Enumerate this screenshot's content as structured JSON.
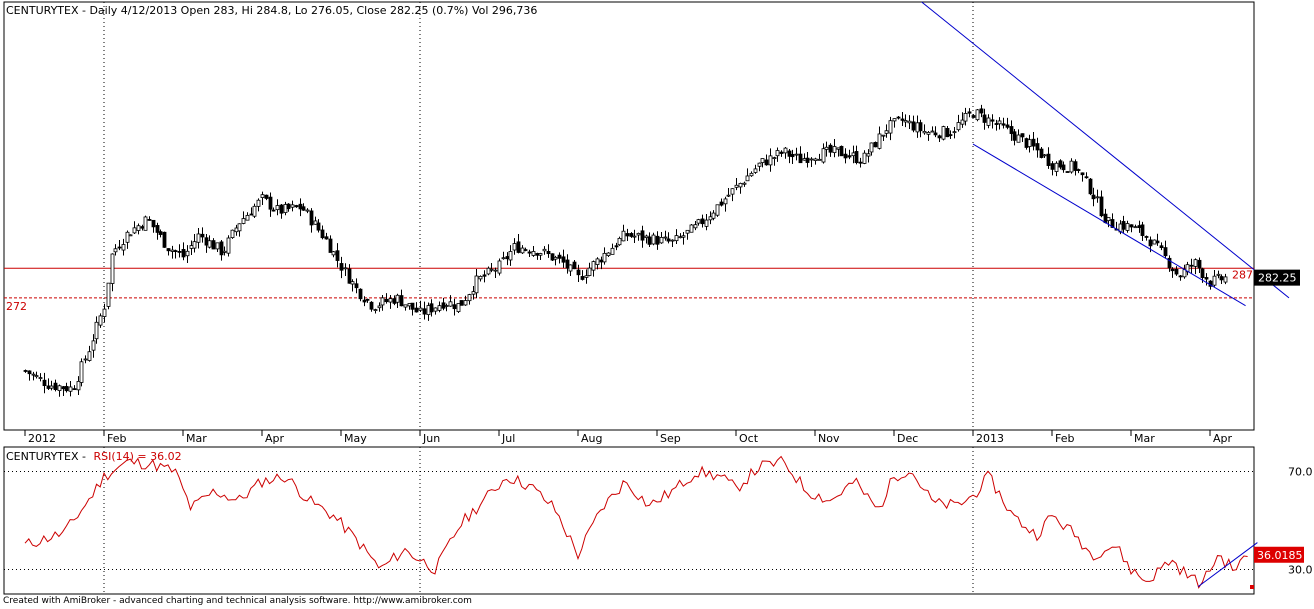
{
  "chart_data": [
    {
      "type": "candlestick",
      "header": {
        "ticker": "CENTURYTEX",
        "period": "Daily",
        "date": "4/12/2013",
        "open_label": "Open",
        "open": "283",
        "high_label": "Hi",
        "high": "284.8",
        "low_label": "Lo",
        "low": "276.05",
        "close_label": "Close",
        "close": "282.25",
        "change": "(0.7%)",
        "vol_label": "Vol",
        "volume": "296,736",
        "text": "CENTURYTEX - Daily 4/12/2013 Open 283, Hi 284.8, Lo 276.05, Close 282.25 (0.7%) Vol 296,736"
      },
      "ylim": [
        205,
        422
      ],
      "x_tick_labels": [
        {
          "label": "2012",
          "month": 0
        },
        {
          "label": "Feb",
          "month": 1
        },
        {
          "label": "Mar",
          "month": 2
        },
        {
          "label": "Apr",
          "month": 3
        },
        {
          "label": "May",
          "month": 4
        },
        {
          "label": "Jun",
          "month": 5
        },
        {
          "label": "Jul",
          "month": 6
        },
        {
          "label": "Aug",
          "month": 7
        },
        {
          "label": "Sep",
          "month": 8
        },
        {
          "label": "Oct",
          "month": 9
        },
        {
          "label": "Nov",
          "month": 10
        },
        {
          "label": "Dec",
          "month": 11
        },
        {
          "label": "2013",
          "month": 12
        },
        {
          "label": "Feb",
          "month": 13
        },
        {
          "label": "Mar",
          "month": 14
        },
        {
          "label": "Apr",
          "month": 15
        }
      ],
      "vertical_dotted_markers": [
        "Feb",
        "Jun",
        "2013"
      ],
      "price_path": [
        {
          "month": 0.0,
          "close": 235
        },
        {
          "month": 0.3,
          "close": 228
        },
        {
          "month": 0.6,
          "close": 226
        },
        {
          "month": 0.8,
          "close": 245
        },
        {
          "month": 1.0,
          "close": 268
        },
        {
          "month": 1.1,
          "close": 295
        },
        {
          "month": 1.3,
          "close": 305
        },
        {
          "month": 1.55,
          "close": 312
        },
        {
          "month": 1.8,
          "close": 298
        },
        {
          "month": 2.0,
          "close": 293
        },
        {
          "month": 2.2,
          "close": 304
        },
        {
          "month": 2.5,
          "close": 295
        },
        {
          "month": 2.7,
          "close": 310
        },
        {
          "month": 3.0,
          "close": 322
        },
        {
          "month": 3.2,
          "close": 316
        },
        {
          "month": 3.5,
          "close": 318
        },
        {
          "month": 3.8,
          "close": 302
        },
        {
          "month": 4.0,
          "close": 288
        },
        {
          "month": 4.2,
          "close": 276
        },
        {
          "month": 4.4,
          "close": 268
        },
        {
          "month": 4.7,
          "close": 272
        },
        {
          "month": 5.0,
          "close": 264
        },
        {
          "month": 5.3,
          "close": 270
        },
        {
          "month": 5.5,
          "close": 268
        },
        {
          "month": 5.7,
          "close": 280
        },
        {
          "month": 6.0,
          "close": 288
        },
        {
          "month": 6.2,
          "close": 298
        },
        {
          "month": 6.5,
          "close": 296
        },
        {
          "month": 6.8,
          "close": 290
        },
        {
          "month": 7.0,
          "close": 282
        },
        {
          "month": 7.3,
          "close": 293
        },
        {
          "month": 7.6,
          "close": 304
        },
        {
          "month": 7.9,
          "close": 302
        },
        {
          "month": 8.2,
          "close": 300
        },
        {
          "month": 8.5,
          "close": 308
        },
        {
          "month": 8.8,
          "close": 320
        },
        {
          "month": 9.0,
          "close": 328
        },
        {
          "month": 9.3,
          "close": 340
        },
        {
          "month": 9.6,
          "close": 346
        },
        {
          "month": 9.8,
          "close": 342
        },
        {
          "month": 10.0,
          "close": 345
        },
        {
          "month": 10.3,
          "close": 346
        },
        {
          "month": 10.6,
          "close": 342
        },
        {
          "month": 10.9,
          "close": 358
        },
        {
          "month": 11.1,
          "close": 362
        },
        {
          "month": 11.4,
          "close": 356
        },
        {
          "month": 11.7,
          "close": 356
        },
        {
          "month": 12.0,
          "close": 366
        },
        {
          "month": 12.2,
          "close": 362
        },
        {
          "month": 12.5,
          "close": 355
        },
        {
          "month": 12.8,
          "close": 347
        },
        {
          "month": 13.0,
          "close": 340
        },
        {
          "month": 13.3,
          "close": 338
        },
        {
          "month": 13.5,
          "close": 326
        },
        {
          "month": 13.7,
          "close": 310
        },
        {
          "month": 14.0,
          "close": 308
        },
        {
          "month": 14.2,
          "close": 303
        },
        {
          "month": 14.4,
          "close": 294
        },
        {
          "month": 14.6,
          "close": 283
        },
        {
          "month": 14.8,
          "close": 290
        },
        {
          "month": 15.0,
          "close": 280
        },
        {
          "month": 15.2,
          "close": 282.25
        }
      ],
      "horizontal_lines": [
        {
          "value": 287,
          "label": "287",
          "style": "solid",
          "color": "#cc0000"
        },
        {
          "value": 272,
          "label": "272",
          "style": "dashed",
          "color": "#cc0000"
        }
      ],
      "trend_channel": {
        "color": "#0000cc",
        "upper": [
          {
            "month": 11.35,
            "value": 422
          },
          {
            "month": 16.0,
            "value": 272
          }
        ],
        "lower": [
          {
            "month": 12.0,
            "value": 350
          },
          {
            "month": 15.45,
            "value": 268
          }
        ]
      },
      "last_value_badge": {
        "label": "282.25",
        "value": 282.25,
        "background": "#000000",
        "text_color": "#ffffff"
      },
      "colors": {
        "candle": "#000000",
        "frame": "#000000"
      }
    },
    {
      "type": "line",
      "header": {
        "ticker": "CENTURYTEX",
        "indicator": "RSI(14)",
        "value": "36.02",
        "text_prefix": "CENTURYTEX -",
        "text_indicator": "RSI(14) = 36.02"
      },
      "ylim": [
        20,
        80
      ],
      "levels": [
        {
          "value": 70,
          "label": "70.0"
        },
        {
          "value": 30,
          "label": "30.0"
        }
      ],
      "rsi_path": [
        {
          "month": 0.0,
          "value": 40
        },
        {
          "month": 0.5,
          "value": 45
        },
        {
          "month": 0.8,
          "value": 58
        },
        {
          "month": 1.0,
          "value": 68
        },
        {
          "month": 1.3,
          "value": 74
        },
        {
          "month": 1.6,
          "value": 73
        },
        {
          "month": 1.9,
          "value": 70
        },
        {
          "month": 2.1,
          "value": 55
        },
        {
          "month": 2.4,
          "value": 62
        },
        {
          "month": 2.7,
          "value": 58
        },
        {
          "month": 3.0,
          "value": 66
        },
        {
          "month": 3.3,
          "value": 68
        },
        {
          "month": 3.6,
          "value": 58
        },
        {
          "month": 3.9,
          "value": 52
        },
        {
          "month": 4.2,
          "value": 42
        },
        {
          "month": 4.5,
          "value": 30
        },
        {
          "month": 4.8,
          "value": 38
        },
        {
          "month": 5.0,
          "value": 34
        },
        {
          "month": 5.2,
          "value": 30
        },
        {
          "month": 5.5,
          "value": 48
        },
        {
          "month": 5.8,
          "value": 58
        },
        {
          "month": 6.1,
          "value": 68
        },
        {
          "month": 6.4,
          "value": 64
        },
        {
          "month": 6.7,
          "value": 55
        },
        {
          "month": 7.0,
          "value": 36
        },
        {
          "month": 7.3,
          "value": 55
        },
        {
          "month": 7.6,
          "value": 66
        },
        {
          "month": 7.9,
          "value": 56
        },
        {
          "month": 8.2,
          "value": 62
        },
        {
          "month": 8.5,
          "value": 70
        },
        {
          "month": 8.8,
          "value": 68
        },
        {
          "month": 9.0,
          "value": 63
        },
        {
          "month": 9.3,
          "value": 72
        },
        {
          "month": 9.6,
          "value": 74
        },
        {
          "month": 9.9,
          "value": 62
        },
        {
          "month": 10.2,
          "value": 58
        },
        {
          "month": 10.5,
          "value": 66
        },
        {
          "month": 10.8,
          "value": 54
        },
        {
          "month": 11.0,
          "value": 68
        },
        {
          "month": 11.2,
          "value": 71
        },
        {
          "month": 11.5,
          "value": 57
        },
        {
          "month": 11.8,
          "value": 56
        },
        {
          "month": 12.0,
          "value": 60
        },
        {
          "month": 12.2,
          "value": 68
        },
        {
          "month": 12.5,
          "value": 52
        },
        {
          "month": 12.8,
          "value": 44
        },
        {
          "month": 13.0,
          "value": 52
        },
        {
          "month": 13.3,
          "value": 44
        },
        {
          "month": 13.5,
          "value": 36
        },
        {
          "month": 13.8,
          "value": 40
        },
        {
          "month": 14.0,
          "value": 30
        },
        {
          "month": 14.2,
          "value": 25
        },
        {
          "month": 14.5,
          "value": 34
        },
        {
          "month": 14.7,
          "value": 28
        },
        {
          "month": 14.9,
          "value": 24
        },
        {
          "month": 15.1,
          "value": 36
        },
        {
          "month": 15.3,
          "value": 30
        },
        {
          "month": 15.5,
          "value": 36.02
        }
      ],
      "trend_line": {
        "color": "#0000cc",
        "points": [
          {
            "month": 14.85,
            "value": 23
          },
          {
            "month": 15.6,
            "value": 41
          }
        ]
      },
      "last_value_badge": {
        "label": "36.0185",
        "value": 36.02,
        "background": "#dd0000",
        "text_color": "#ffffff"
      },
      "colors": {
        "line": "#cc0000",
        "header_indicator": "#cc0000"
      }
    }
  ],
  "footer": {
    "text": "Created with AmiBroker - advanced charting and technical analysis software. http://www.amibroker.com"
  }
}
